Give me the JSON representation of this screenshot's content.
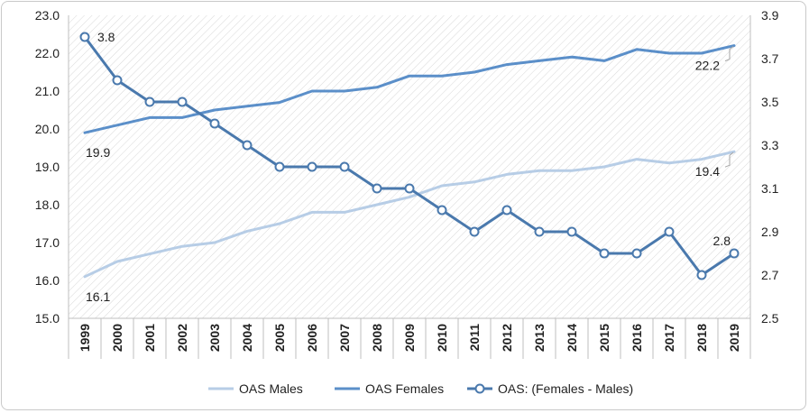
{
  "chart_data": {
    "type": "line",
    "categories": [
      "1999",
      "2000",
      "2001",
      "2002",
      "2003",
      "2004",
      "2005",
      "2006",
      "2007",
      "2008",
      "2009",
      "2010",
      "2011",
      "2012",
      "2013",
      "2014",
      "2015",
      "2016",
      "2017",
      "2018",
      "2019"
    ],
    "y_left": {
      "min": 15.0,
      "max": 23.0,
      "ticks": [
        "15.0",
        "16.0",
        "17.0",
        "18.0",
        "19.0",
        "20.0",
        "21.0",
        "22.0",
        "23.0"
      ]
    },
    "y_right": {
      "min": 2.5,
      "max": 3.9,
      "ticks": [
        "2.5",
        "2.7",
        "2.9",
        "3.1",
        "3.3",
        "3.5",
        "3.7",
        "3.9"
      ]
    },
    "grid": "diagonal hatch",
    "legend_position": "bottom",
    "series": [
      {
        "name": "OAS Males",
        "axis": "left",
        "color": "#b7cde6",
        "marker": false,
        "values": [
          16.1,
          16.5,
          16.7,
          16.9,
          17.0,
          17.3,
          17.5,
          17.8,
          17.8,
          18.0,
          18.2,
          18.5,
          18.6,
          18.8,
          18.9,
          18.9,
          19.0,
          19.2,
          19.1,
          19.2,
          19.4
        ]
      },
      {
        "name": "OAS Females",
        "axis": "left",
        "color": "#5b8fc9",
        "marker": false,
        "values": [
          19.9,
          20.1,
          20.3,
          20.3,
          20.5,
          20.6,
          20.7,
          21.0,
          21.0,
          21.1,
          21.4,
          21.4,
          21.5,
          21.7,
          21.8,
          21.9,
          21.8,
          22.1,
          22.0,
          22.0,
          22.2
        ]
      },
      {
        "name": "OAS: (Females - Males)",
        "axis": "right",
        "color": "#4a79ad",
        "marker": true,
        "values": [
          3.8,
          3.6,
          3.5,
          3.5,
          3.4,
          3.3,
          3.2,
          3.2,
          3.2,
          3.1,
          3.1,
          3.0,
          2.9,
          3.0,
          2.9,
          2.9,
          2.8,
          2.8,
          2.9,
          2.7,
          2.8
        ]
      }
    ],
    "data_labels": [
      {
        "series": 2,
        "index": 0,
        "text": "3.8"
      },
      {
        "series": 1,
        "index": 0,
        "text": "19.9"
      },
      {
        "series": 0,
        "index": 0,
        "text": "16.1"
      },
      {
        "series": 1,
        "index": 20,
        "text": "22.2"
      },
      {
        "series": 0,
        "index": 20,
        "text": "19.4"
      },
      {
        "series": 2,
        "index": 20,
        "text": "2.8"
      }
    ]
  }
}
